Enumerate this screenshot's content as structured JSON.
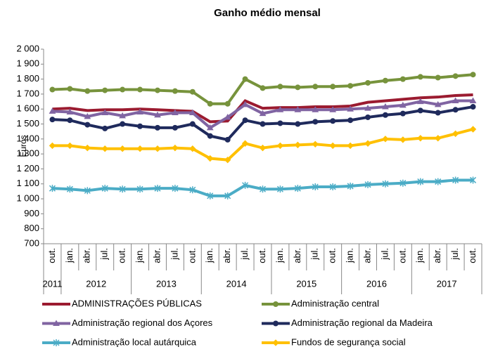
{
  "chart_data": {
    "type": "line",
    "title": "Ganho médio mensal",
    "y_label": "Euros",
    "categories": [
      "out.",
      "jan.",
      "abr.",
      "jul.",
      "out.",
      "jan.",
      "abr.",
      "jul.",
      "out.",
      "jan.",
      "abr.",
      "jul.",
      "out.",
      "jan.",
      "abr.",
      "jul.",
      "out.",
      "jan.",
      "abr.",
      "jul.",
      "out.",
      "jan.",
      "abr.",
      "jul.",
      "out."
    ],
    "years": [
      "2011",
      "2012",
      "2012",
      "2012",
      "2012",
      "2013",
      "2013",
      "2013",
      "2013",
      "2014",
      "2014",
      "2014",
      "2014",
      "2015",
      "2015",
      "2015",
      "2015",
      "2016",
      "2016",
      "2016",
      "2016",
      "2017",
      "2017",
      "2017",
      "2017"
    ],
    "ylim": [
      700,
      2000
    ],
    "yticks": [
      700,
      800,
      900,
      {
        "value": 1000,
        "label": "1 000"
      },
      {
        "value": 1100,
        "label": "1 100"
      },
      {
        "value": 1200,
        "label": "1 200"
      },
      {
        "value": 1300,
        "label": "1 300"
      },
      {
        "value": 1400,
        "label": "1 400"
      },
      {
        "value": 1500,
        "label": "1 500"
      },
      {
        "value": 1600,
        "label": "1 600"
      },
      {
        "value": 1700,
        "label": "1 700"
      },
      {
        "value": 1800,
        "label": "1 800"
      },
      {
        "value": 1900,
        "label": "1 900"
      },
      {
        "value": 2000,
        "label": "2 000"
      }
    ],
    "series": [
      {
        "name": "ADMINISTRAÇÕES PÚBLICAS",
        "color": "#9b1b30",
        "marker": "none",
        "values": [
          1600,
          1605,
          1590,
          1595,
          1595,
          1600,
          1595,
          1590,
          1585,
          1515,
          1520,
          1655,
          1605,
          1610,
          1610,
          1615,
          1615,
          1620,
          1645,
          1655,
          1665,
          1675,
          1680,
          1690,
          1695
        ]
      },
      {
        "name": "Administração central",
        "color": "#77933c",
        "marker": "circle",
        "values": [
          1730,
          1735,
          1720,
          1725,
          1730,
          1730,
          1725,
          1720,
          1715,
          1635,
          1635,
          1800,
          1740,
          1750,
          1745,
          1750,
          1750,
          1755,
          1775,
          1790,
          1800,
          1815,
          1810,
          1820,
          1830
        ]
      },
      {
        "name": "Administração regional dos Açores",
        "color": "#8064a2",
        "marker": "triangle",
        "values": [
          1585,
          1580,
          1550,
          1575,
          1555,
          1580,
          1560,
          1575,
          1575,
          1475,
          1545,
          1630,
          1570,
          1595,
          1595,
          1595,
          1595,
          1600,
          1605,
          1615,
          1625,
          1650,
          1630,
          1655,
          1655
        ]
      },
      {
        "name": "Administração regional da Madeira",
        "color": "#1f2a5c",
        "marker": "circle",
        "values": [
          1530,
          1525,
          1495,
          1470,
          1500,
          1485,
          1475,
          1475,
          1500,
          1420,
          1395,
          1525,
          1500,
          1505,
          1500,
          1515,
          1520,
          1525,
          1545,
          1560,
          1570,
          1590,
          1575,
          1595,
          1615
        ]
      },
      {
        "name": "Administração local autárquica",
        "color": "#4bacc6",
        "marker": "star",
        "values": [
          1070,
          1065,
          1055,
          1070,
          1065,
          1065,
          1070,
          1070,
          1060,
          1020,
          1020,
          1090,
          1065,
          1065,
          1070,
          1080,
          1080,
          1085,
          1095,
          1100,
          1105,
          1115,
          1115,
          1125,
          1125
        ]
      },
      {
        "name": "Fundos de segurança social",
        "color": "#ffc000",
        "marker": "diamond",
        "values": [
          1355,
          1355,
          1340,
          1335,
          1335,
          1335,
          1335,
          1340,
          1335,
          1270,
          1260,
          1370,
          1340,
          1355,
          1360,
          1365,
          1355,
          1355,
          1370,
          1400,
          1395,
          1405,
          1405,
          1435,
          1465
        ]
      }
    ]
  }
}
